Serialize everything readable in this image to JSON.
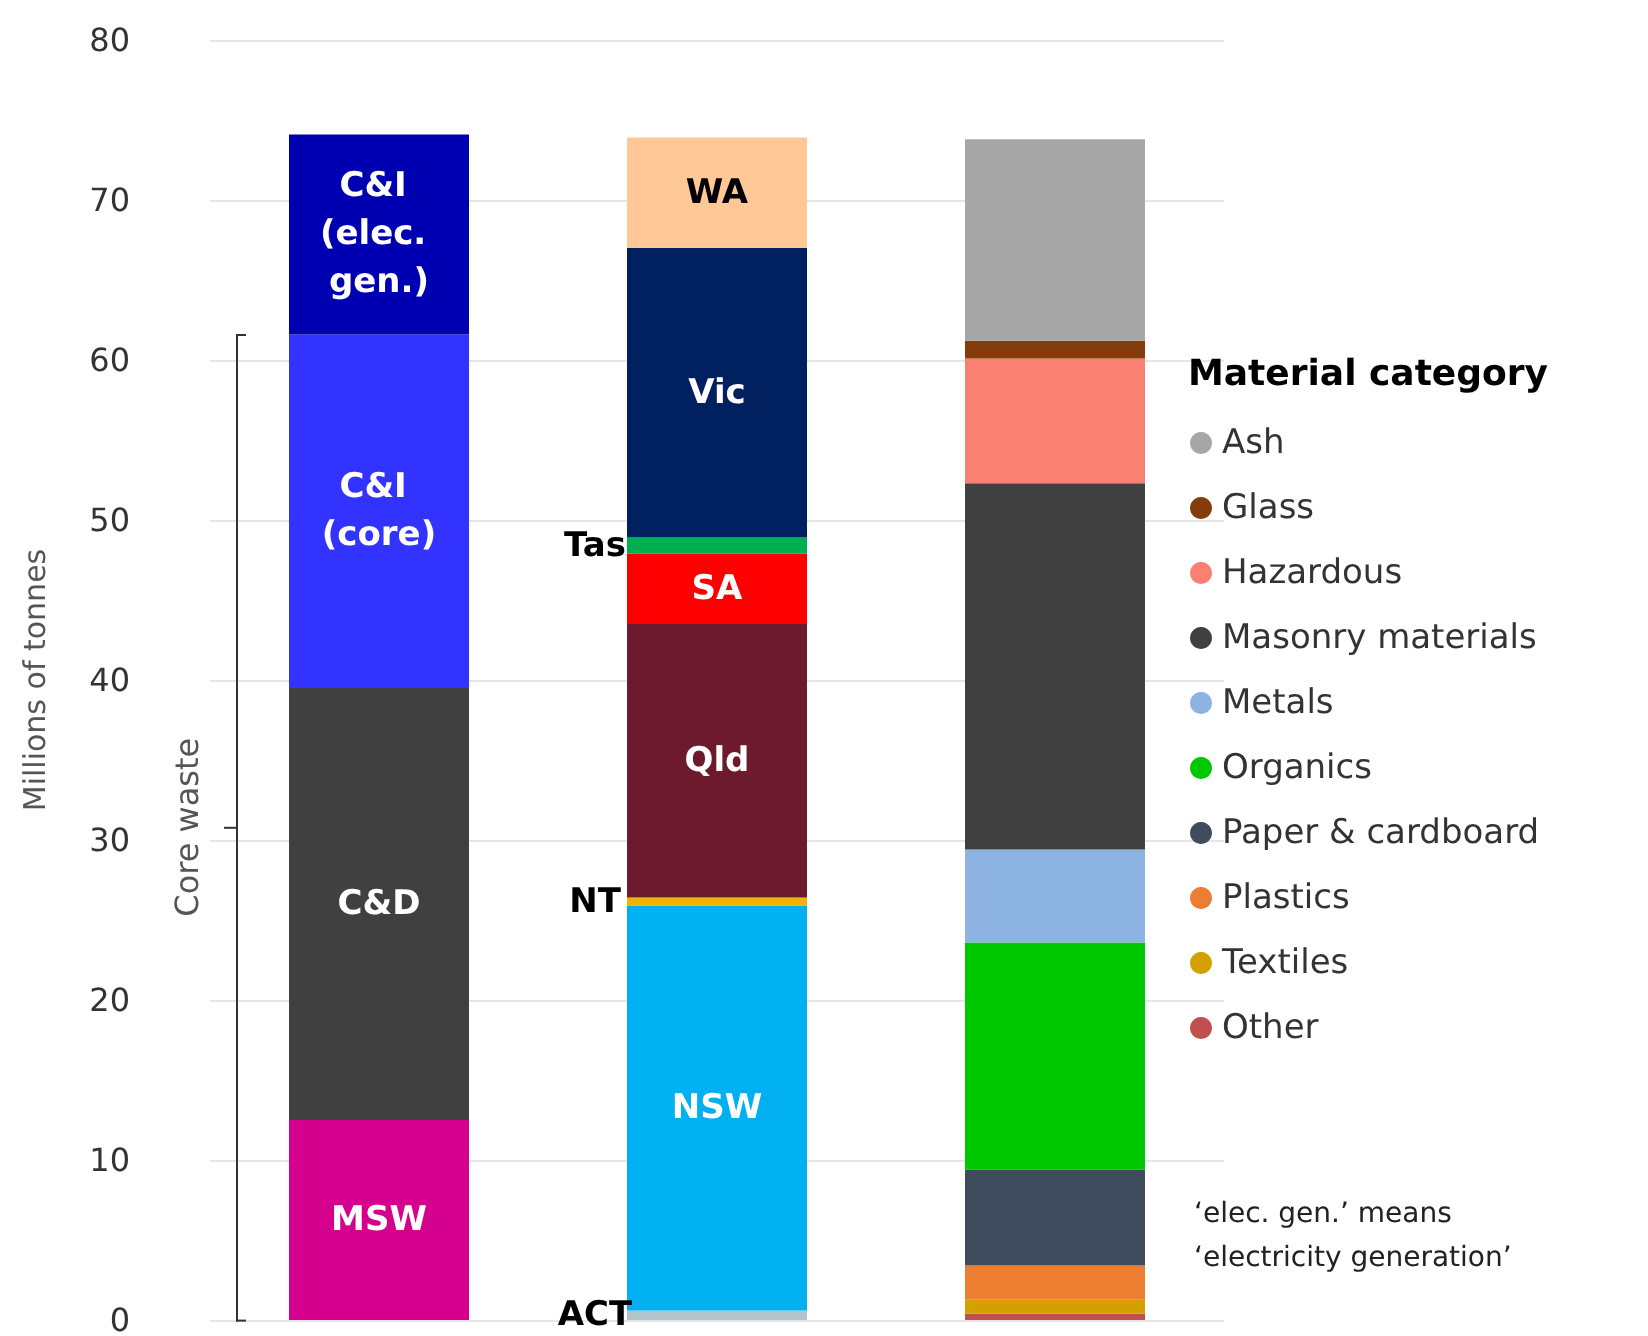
{
  "chart_data": {
    "type": "bar",
    "stacked": true,
    "categories": [
      null,
      null,
      null
    ],
    "ylabel": "Millions of tonnes",
    "ylim": [
      0,
      80
    ],
    "yticks": [
      0,
      10,
      20,
      30,
      40,
      50,
      60,
      70,
      80
    ],
    "grid": "y",
    "legend": "right",
    "legend_title": "Material category",
    "annotations": [
      "Core waste",
      "‘elec. gen.’ means ‘electricity generation’"
    ],
    "series": [
      {
        "name": "MSW",
        "color": "#d6008f",
        "values": [
          12.5,
          null,
          null
        ]
      },
      {
        "name": "C&D",
        "color": "#404040",
        "values": [
          27,
          null,
          null
        ]
      },
      {
        "name": "C&I (core)",
        "color": "#3333ff",
        "values": [
          22.1,
          null,
          null
        ]
      },
      {
        "name": "C&I (elec. gen.)",
        "color": "#0000b3",
        "values": [
          12.5,
          null,
          null
        ]
      },
      {
        "name": "ACT",
        "color": "#b0c4cc",
        "values": [
          null,
          0.6,
          null
        ]
      },
      {
        "name": "NSW",
        "color": "#00b0f0",
        "values": [
          null,
          25.3,
          null
        ]
      },
      {
        "name": "NT",
        "color": "#f0b400",
        "values": [
          null,
          0.5,
          null
        ]
      },
      {
        "name": "Qld",
        "color": "#6d1a2e",
        "values": [
          null,
          17.1,
          null
        ]
      },
      {
        "name": "SA",
        "color": "#ff0000",
        "values": [
          null,
          4.4,
          null
        ]
      },
      {
        "name": "Tas",
        "color": "#00b050",
        "values": [
          null,
          1.0,
          null
        ]
      },
      {
        "name": "Vic",
        "color": "#002060",
        "values": [
          null,
          18.1,
          null
        ]
      },
      {
        "name": "WA",
        "color": "#ffc896",
        "values": [
          null,
          6.9,
          null
        ]
      },
      {
        "name": "Other",
        "color": "#c0504d",
        "values": [
          null,
          null,
          0.4
        ]
      },
      {
        "name": "Textiles",
        "color": "#d4a000",
        "values": [
          null,
          null,
          0.9
        ]
      },
      {
        "name": "Plastics",
        "color": "#ed7d31",
        "values": [
          null,
          null,
          2.1
        ]
      },
      {
        "name": "Paper & cardboard",
        "color": "#3e4c5e",
        "values": [
          null,
          null,
          6.0
        ]
      },
      {
        "name": "Organics",
        "color": "#00c800",
        "values": [
          null,
          null,
          14.2
        ]
      },
      {
        "name": "Metals",
        "color": "#8db3e2",
        "values": [
          null,
          null,
          5.8
        ]
      },
      {
        "name": "Masonry materials",
        "color": "#404040",
        "values": [
          null,
          null,
          22.9
        ]
      },
      {
        "name": "Hazardous",
        "color": "#fa8072",
        "values": [
          null,
          null,
          7.8
        ]
      },
      {
        "name": "Glass",
        "color": "#843c0c",
        "values": [
          null,
          null,
          1.1
        ]
      },
      {
        "name": "Ash",
        "color": "#a6a6a6",
        "values": [
          null,
          null,
          12.6
        ]
      }
    ]
  }
}
